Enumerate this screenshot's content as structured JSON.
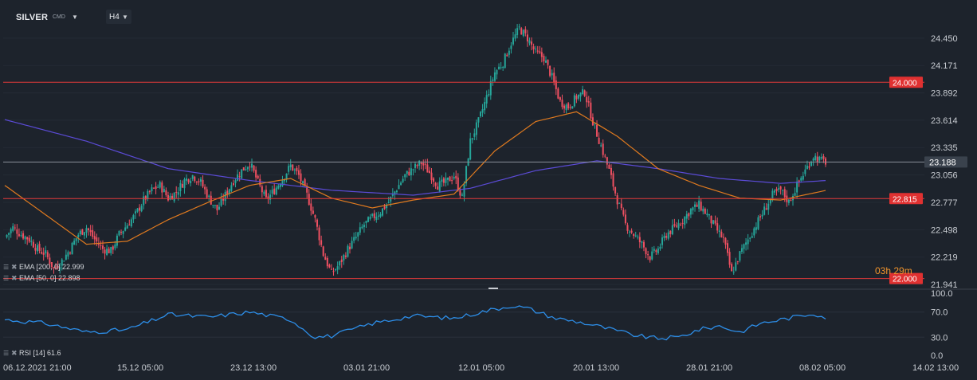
{
  "toolbar": {
    "symbol": "SILVER",
    "symbol_type": "CMD",
    "timeframe": "H4"
  },
  "countdown": "03h 29m",
  "indicators": {
    "ema200": "EMA [200, 0] 22.999",
    "ema50": "EMA [50, 0] 22.898",
    "rsi": "RSI [14] 61.6"
  },
  "colors": {
    "background": "#1d232c",
    "up_candle": "#26a69a",
    "down_candle": "#ef5061",
    "ema200": "#5b4bd6",
    "ema50": "#e07a1f",
    "rsi": "#2d8ee8",
    "level_line": "#e23a3a",
    "price_line": "#8a9099"
  },
  "chart_data": {
    "type": "candlestick",
    "symbol": "SILVER",
    "timeframe": "H4",
    "y_axis": {
      "ticks": [
        "24.450",
        "24.171",
        "23.892",
        "23.614",
        "23.335",
        "23.056",
        "22.777",
        "22.498",
        "22.219",
        "21.941"
      ],
      "range": [
        21.9,
        24.66
      ]
    },
    "x_axis": {
      "ticks": [
        "06.12.2021 21:00",
        "15.12 05:00",
        "23.12 13:00",
        "03.01 21:00",
        "12.01 05:00",
        "20.01 13:00",
        "28.01 21:00",
        "08.02 05:00",
        "14.02 13:00"
      ]
    },
    "levels": [
      {
        "value": 24.0,
        "label": "24.000",
        "style": "red"
      },
      {
        "value": 22.815,
        "label": "22.815",
        "style": "red"
      },
      {
        "value": 22.0,
        "label": "22.000",
        "style": "red"
      },
      {
        "value": 23.188,
        "label": "23.188",
        "style": "current"
      }
    ],
    "close_path": [
      [
        0,
        22.42
      ],
      [
        4,
        22.52
      ],
      [
        8,
        22.45
      ],
      [
        12,
        22.4
      ],
      [
        16,
        22.3
      ],
      [
        20,
        22.25
      ],
      [
        24,
        22.1
      ],
      [
        28,
        22.18
      ],
      [
        32,
        22.3
      ],
      [
        36,
        22.45
      ],
      [
        40,
        22.52
      ],
      [
        44,
        22.4
      ],
      [
        48,
        22.3
      ],
      [
        52,
        22.28
      ],
      [
        56,
        22.45
      ],
      [
        60,
        22.55
      ],
      [
        64,
        22.65
      ],
      [
        68,
        22.8
      ],
      [
        72,
        22.9
      ],
      [
        76,
        22.95
      ],
      [
        80,
        22.82
      ],
      [
        84,
        22.88
      ],
      [
        88,
        23.0
      ],
      [
        92,
        23.05
      ],
      [
        96,
        22.98
      ],
      [
        100,
        22.82
      ],
      [
        104,
        22.7
      ],
      [
        108,
        22.85
      ],
      [
        112,
        23.0
      ],
      [
        116,
        23.1
      ],
      [
        120,
        23.18
      ],
      [
        124,
        22.98
      ],
      [
        128,
        22.8
      ],
      [
        132,
        22.9
      ],
      [
        136,
        23.02
      ],
      [
        140,
        23.15
      ],
      [
        144,
        23.05
      ],
      [
        148,
        22.85
      ],
      [
        152,
        22.6
      ],
      [
        156,
        22.25
      ],
      [
        160,
        22.05
      ],
      [
        164,
        22.15
      ],
      [
        168,
        22.3
      ],
      [
        172,
        22.42
      ],
      [
        176,
        22.55
      ],
      [
        180,
        22.62
      ],
      [
        184,
        22.68
      ],
      [
        188,
        22.78
      ],
      [
        192,
        22.92
      ],
      [
        196,
        23.05
      ],
      [
        200,
        23.12
      ],
      [
        204,
        23.18
      ],
      [
        208,
        23.08
      ],
      [
        212,
        22.95
      ],
      [
        216,
        22.98
      ],
      [
        220,
        23.05
      ],
      [
        224,
        22.82
      ],
      [
        228,
        23.4
      ],
      [
        232,
        23.6
      ],
      [
        236,
        23.85
      ],
      [
        240,
        24.1
      ],
      [
        244,
        24.2
      ],
      [
        248,
        24.4
      ],
      [
        252,
        24.55
      ],
      [
        256,
        24.45
      ],
      [
        260,
        24.3
      ],
      [
        264,
        24.25
      ],
      [
        268,
        24.05
      ],
      [
        272,
        23.8
      ],
      [
        276,
        23.75
      ],
      [
        280,
        23.85
      ],
      [
        284,
        23.9
      ],
      [
        288,
        23.6
      ],
      [
        292,
        23.35
      ],
      [
        296,
        23.1
      ],
      [
        300,
        22.8
      ],
      [
        304,
        22.55
      ],
      [
        308,
        22.45
      ],
      [
        312,
        22.35
      ],
      [
        316,
        22.22
      ],
      [
        320,
        22.3
      ],
      [
        324,
        22.45
      ],
      [
        328,
        22.52
      ],
      [
        332,
        22.6
      ],
      [
        336,
        22.7
      ],
      [
        340,
        22.75
      ],
      [
        344,
        22.65
      ],
      [
        348,
        22.52
      ],
      [
        352,
        22.4
      ],
      [
        356,
        22.05
      ],
      [
        360,
        22.25
      ],
      [
        364,
        22.4
      ],
      [
        368,
        22.55
      ],
      [
        372,
        22.7
      ],
      [
        376,
        22.85
      ],
      [
        380,
        22.9
      ],
      [
        384,
        22.78
      ],
      [
        388,
        22.95
      ],
      [
        392,
        23.1
      ],
      [
        396,
        23.25
      ],
      [
        400,
        23.2
      ],
      [
        402,
        23.19
      ]
    ],
    "series": [
      {
        "name": "EMA [200, 0]",
        "path": [
          [
            0,
            23.62
          ],
          [
            40,
            23.4
          ],
          [
            80,
            23.12
          ],
          [
            120,
            23.0
          ],
          [
            160,
            22.9
          ],
          [
            200,
            22.85
          ],
          [
            228,
            22.92
          ],
          [
            260,
            23.1
          ],
          [
            290,
            23.2
          ],
          [
            320,
            23.12
          ],
          [
            350,
            23.02
          ],
          [
            380,
            22.97
          ],
          [
            402,
            22.999
          ]
        ]
      },
      {
        "name": "EMA [50, 0]",
        "path": [
          [
            0,
            22.95
          ],
          [
            40,
            22.35
          ],
          [
            60,
            22.38
          ],
          [
            80,
            22.6
          ],
          [
            100,
            22.78
          ],
          [
            120,
            22.95
          ],
          [
            140,
            23.02
          ],
          [
            160,
            22.82
          ],
          [
            180,
            22.72
          ],
          [
            200,
            22.8
          ],
          [
            220,
            22.86
          ],
          [
            240,
            23.3
          ],
          [
            260,
            23.6
          ],
          [
            280,
            23.7
          ],
          [
            300,
            23.45
          ],
          [
            320,
            23.12
          ],
          [
            340,
            22.95
          ],
          [
            360,
            22.82
          ],
          [
            380,
            22.8
          ],
          [
            402,
            22.898
          ]
        ]
      },
      {
        "name": "RSI [14]",
        "path": [
          [
            0,
            58
          ],
          [
            20,
            52
          ],
          [
            40,
            38
          ],
          [
            60,
            42
          ],
          [
            80,
            66
          ],
          [
            100,
            62
          ],
          [
            120,
            70
          ],
          [
            140,
            58
          ],
          [
            152,
            30
          ],
          [
            160,
            32
          ],
          [
            180,
            52
          ],
          [
            200,
            64
          ],
          [
            220,
            60
          ],
          [
            236,
            72
          ],
          [
            248,
            80
          ],
          [
            256,
            76
          ],
          [
            270,
            60
          ],
          [
            280,
            55
          ],
          [
            290,
            48
          ],
          [
            300,
            40
          ],
          [
            310,
            32
          ],
          [
            320,
            28
          ],
          [
            330,
            30
          ],
          [
            340,
            42
          ],
          [
            350,
            48
          ],
          [
            360,
            38
          ],
          [
            370,
            52
          ],
          [
            380,
            58
          ],
          [
            390,
            64
          ],
          [
            396,
            68
          ],
          [
            402,
            61.6
          ]
        ]
      }
    ],
    "rsi_axis": {
      "ticks": [
        "100.0",
        "70.0",
        "30.0",
        "0.0"
      ],
      "range": [
        0,
        100
      ]
    }
  }
}
